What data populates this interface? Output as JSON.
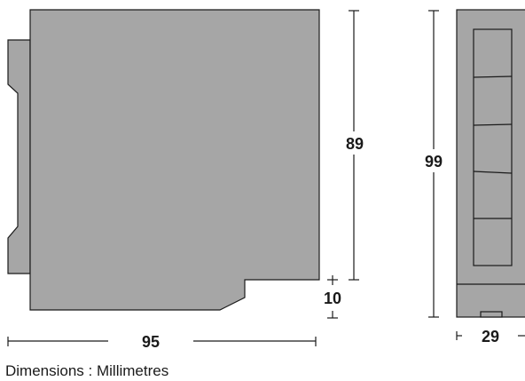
{
  "diagram": {
    "labels": {
      "height_main": "89",
      "height_offset": "10",
      "width_depth": "95",
      "height_side": "99",
      "width_side": "29"
    },
    "caption": "Dimensions : Millimetres",
    "colors": {
      "body_fill": "#a6a6a6",
      "outline": "#1a1a1a",
      "background": "#ffffff"
    }
  }
}
